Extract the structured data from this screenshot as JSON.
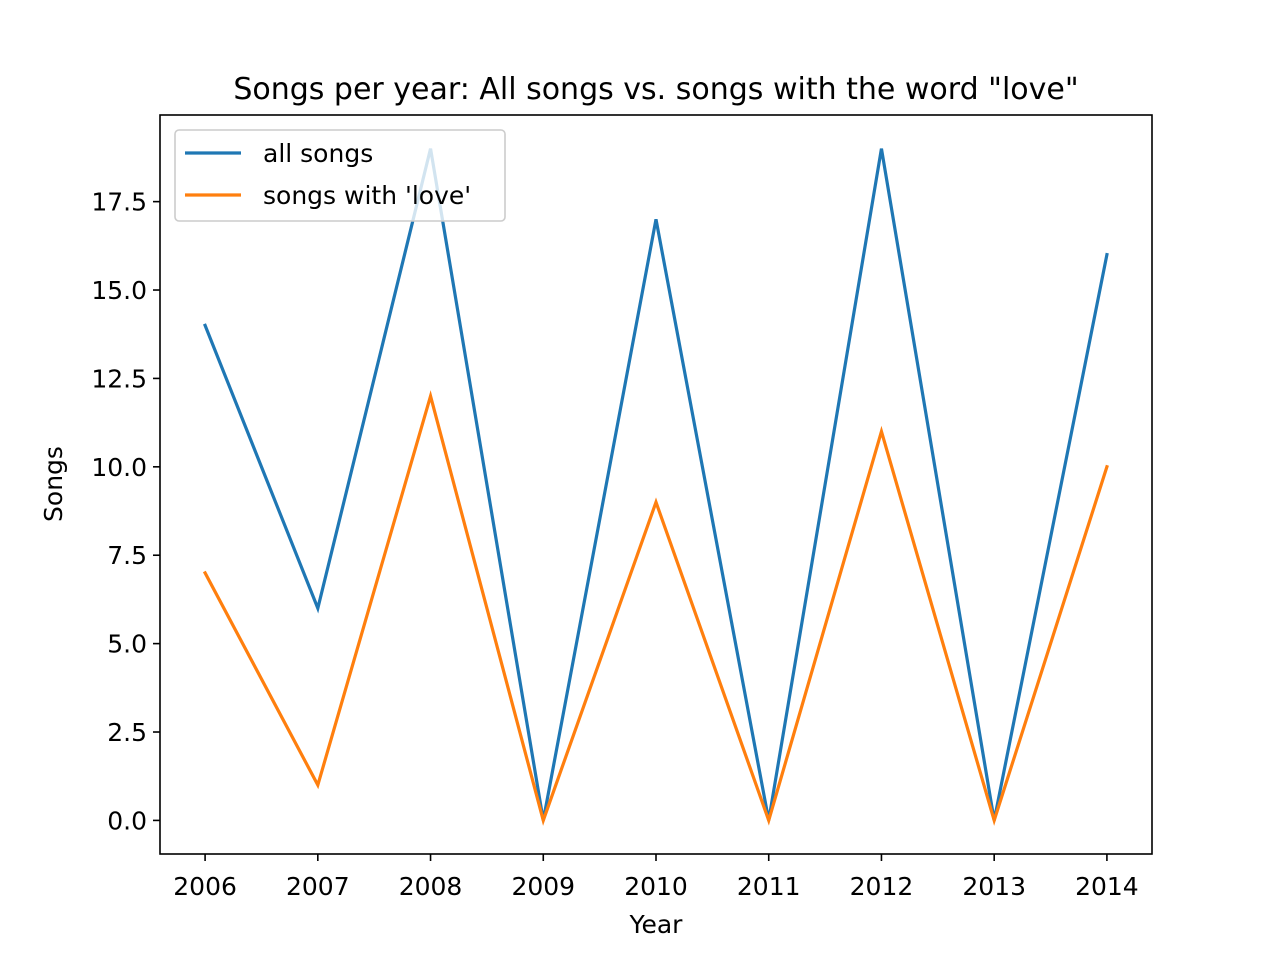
{
  "chart_data": {
    "type": "line",
    "title": "Songs per year: All songs vs. songs with the word \"love\"",
    "xlabel": "Year",
    "ylabel": "Songs",
    "x": [
      2006,
      2007,
      2008,
      2009,
      2010,
      2011,
      2012,
      2013,
      2014
    ],
    "x_tick_labels": [
      "2006",
      "2007",
      "2008",
      "2009",
      "2010",
      "2011",
      "2012",
      "2013",
      "2014"
    ],
    "xlim": [
      2005.6,
      2014.4
    ],
    "ylim": [
      -0.95,
      19.95
    ],
    "y_ticks": [
      0.0,
      2.5,
      5.0,
      7.5,
      10.0,
      12.5,
      15.0,
      17.5
    ],
    "y_tick_labels": [
      "0.0",
      "2.5",
      "5.0",
      "7.5",
      "10.0",
      "12.5",
      "15.0",
      "17.5"
    ],
    "grid": false,
    "legend_position": "top-left",
    "series": [
      {
        "name": "all songs",
        "color": "#1f77b4",
        "values": [
          14,
          6,
          19,
          0,
          17,
          0,
          19,
          0,
          16
        ]
      },
      {
        "name": "songs with 'love'",
        "color": "#ff7f0e",
        "values": [
          7,
          1,
          12,
          0,
          9,
          0,
          11,
          0,
          10
        ]
      }
    ]
  }
}
